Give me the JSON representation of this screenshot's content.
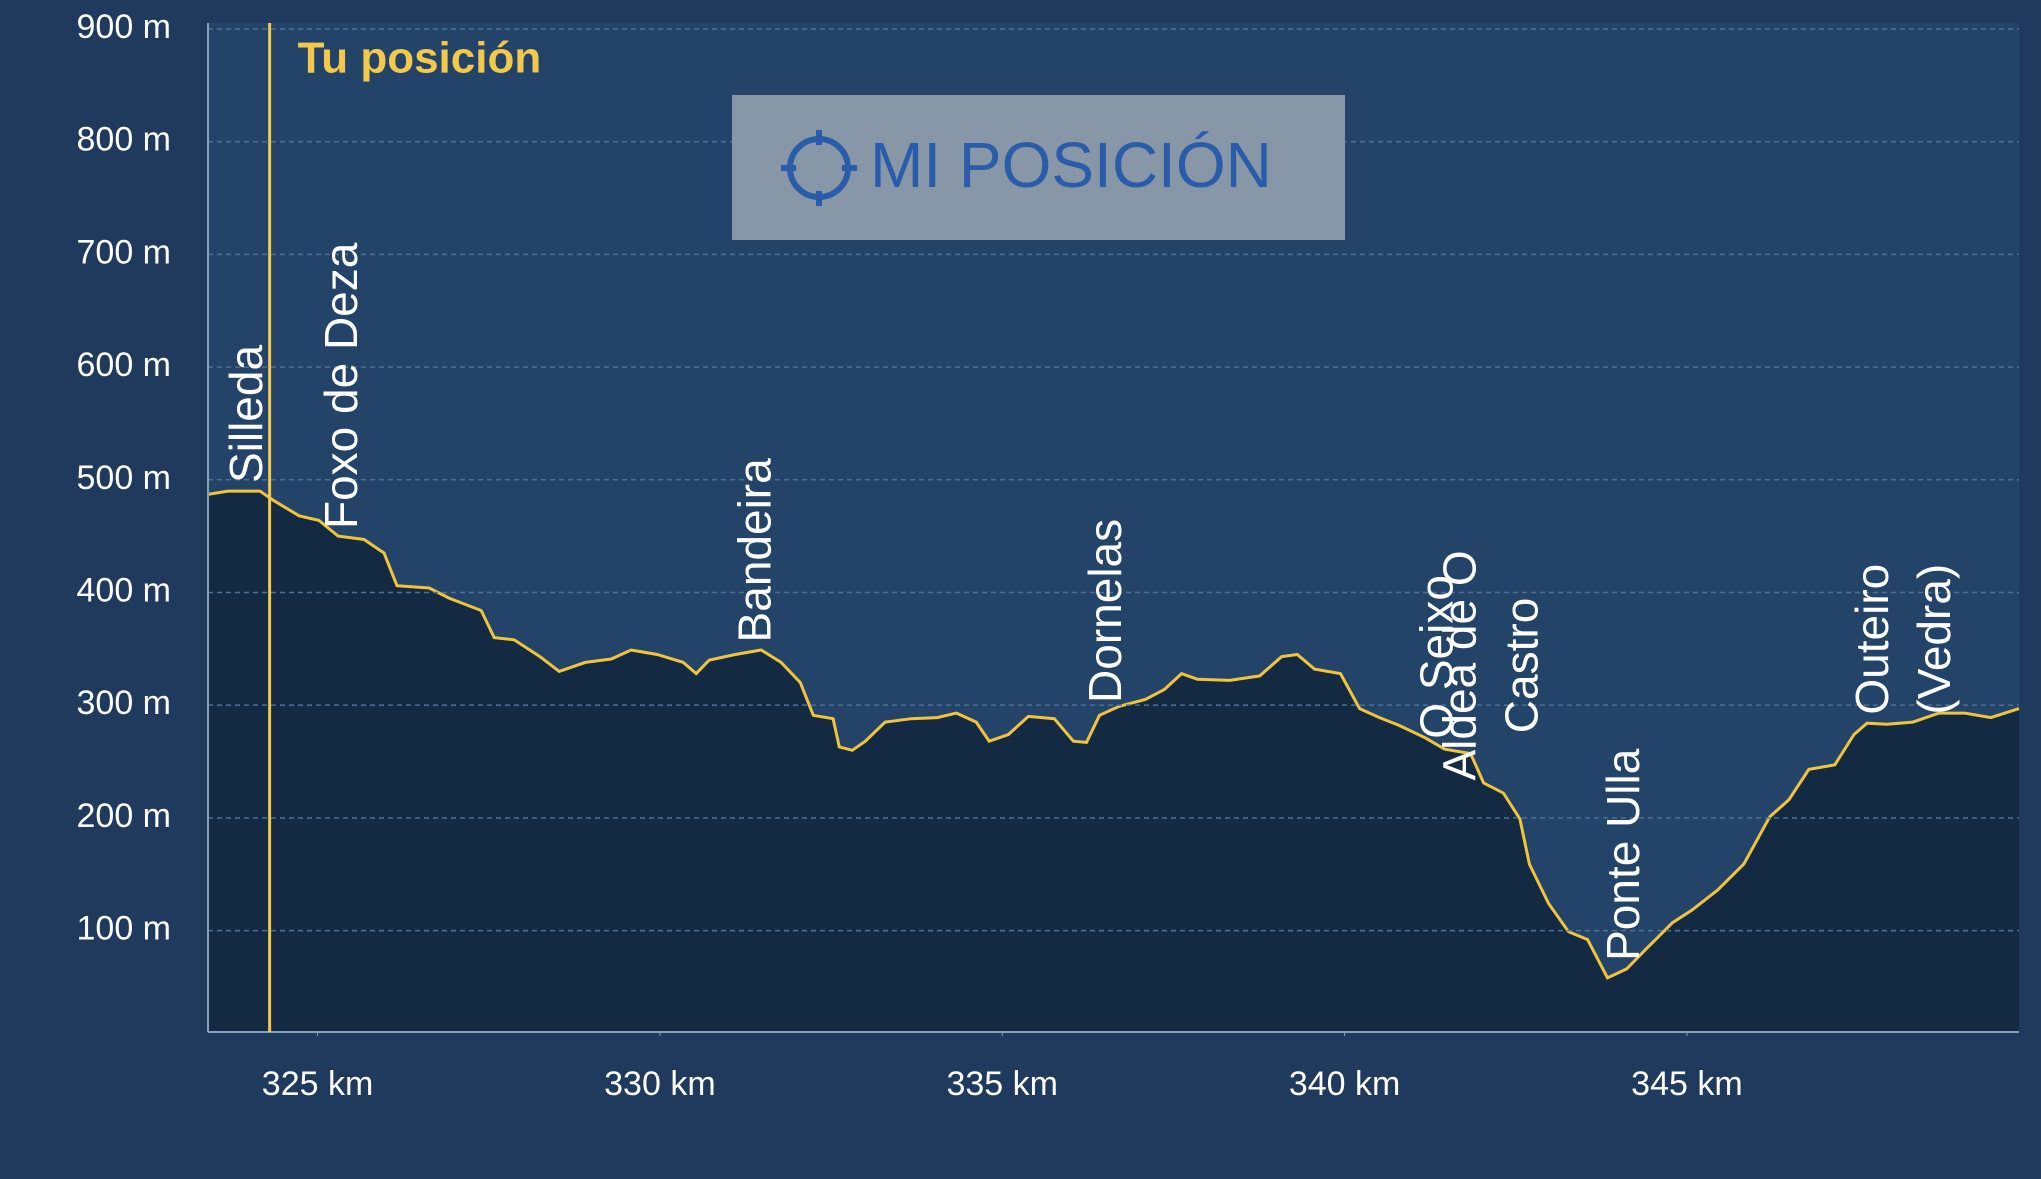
{
  "chart_data": {
    "type": "area",
    "x": [
      323.4,
      323.69,
      324.16,
      324.35,
      324.73,
      325.02,
      325.3,
      325.68,
      325.97,
      326.16,
      326.63,
      326.92,
      327.39,
      327.58,
      327.87,
      328.25,
      328.53,
      328.91,
      329.29,
      329.58,
      329.96,
      330.34,
      330.53,
      330.72,
      331.1,
      331.48,
      331.77,
      332.05,
      332.24,
      332.53,
      332.62,
      332.81,
      333.0,
      333.29,
      333.67,
      334.05,
      334.33,
      334.62,
      334.81,
      335.09,
      335.38,
      335.76,
      336.04,
      336.23,
      336.42,
      336.71,
      337.09,
      337.37,
      337.62,
      337.85,
      338.32,
      338.76,
      339.08,
      339.31,
      339.56,
      339.94,
      340.22,
      340.51,
      340.8,
      341.18,
      341.46,
      341.84,
      342.03,
      342.32,
      342.56,
      342.7,
      342.98,
      343.27,
      343.55,
      343.84,
      344.12,
      344.41,
      344.79,
      345.07,
      345.45,
      345.83,
      346.21,
      346.49,
      346.78,
      347.16,
      347.44,
      347.63,
      347.92,
      348.3,
      348.68,
      349.06,
      349.44,
      349.85
    ],
    "values": [
      487,
      490,
      490,
      482,
      468,
      464,
      450,
      447,
      435,
      406,
      404,
      395,
      384,
      360,
      358,
      343,
      330,
      338,
      341,
      349,
      345,
      338,
      328,
      340,
      345,
      349,
      338,
      320,
      291,
      288,
      263,
      260,
      268,
      285,
      288,
      289,
      293,
      285,
      268,
      274,
      290,
      288,
      268,
      267,
      291,
      299,
      305,
      314,
      328,
      323,
      322,
      326,
      343,
      345,
      332,
      328,
      297,
      289,
      282,
      271,
      261,
      257,
      231,
      222,
      199,
      159,
      124,
      99,
      92,
      58,
      66,
      84,
      107,
      118,
      136,
      159,
      201,
      216,
      243,
      247,
      274,
      284,
      283,
      285,
      293,
      293,
      289,
      297
    ],
    "color": "#f0c43c",
    "fill_color": "#142a42",
    "xlim": [
      323.4,
      349.85
    ],
    "ylim": [
      10,
      900
    ],
    "xticks": [
      {
        "value": 325,
        "label": "325 km"
      },
      {
        "value": 330,
        "label": "330 km"
      },
      {
        "value": 335,
        "label": "335 km"
      },
      {
        "value": 340,
        "label": "340 km"
      },
      {
        "value": 345,
        "label": "345 km"
      }
    ],
    "yticks": [
      {
        "value": 100,
        "label": "100 m"
      },
      {
        "value": 200,
        "label": "200 m"
      },
      {
        "value": 300,
        "label": "300 m"
      },
      {
        "value": 400,
        "label": "400 m"
      },
      {
        "value": 500,
        "label": "500 m"
      },
      {
        "value": 600,
        "label": "600 m"
      },
      {
        "value": 700,
        "label": "700 m"
      },
      {
        "value": 800,
        "label": "800 m"
      },
      {
        "value": 900,
        "label": "900 m"
      }
    ],
    "grid": true,
    "position": {
      "x": 324.3,
      "label": "Tu posición",
      "color": "#f2c94c"
    },
    "waypoints": [
      {
        "x": 324.01,
        "lines": [
          "Silleda"
        ]
      },
      {
        "x": 325.4,
        "lines": [
          "Foxo de Deza"
        ]
      },
      {
        "x": 331.44,
        "lines": [
          "Bandeira"
        ]
      },
      {
        "x": 336.56,
        "lines": [
          "Dornelas"
        ]
      },
      {
        "x": 341.4,
        "lines": [
          "O Seixo"
        ]
      },
      {
        "x": 342.19,
        "lines": [
          "Aldea de O",
          "Castro"
        ]
      },
      {
        "x": 344.12,
        "lines": [
          "Ponte Ulla"
        ]
      },
      {
        "x": 348.21,
        "lines": [
          "Outeiro",
          "(Vedra)"
        ]
      }
    ]
  },
  "button": {
    "label": "MI POSICIÓN"
  }
}
